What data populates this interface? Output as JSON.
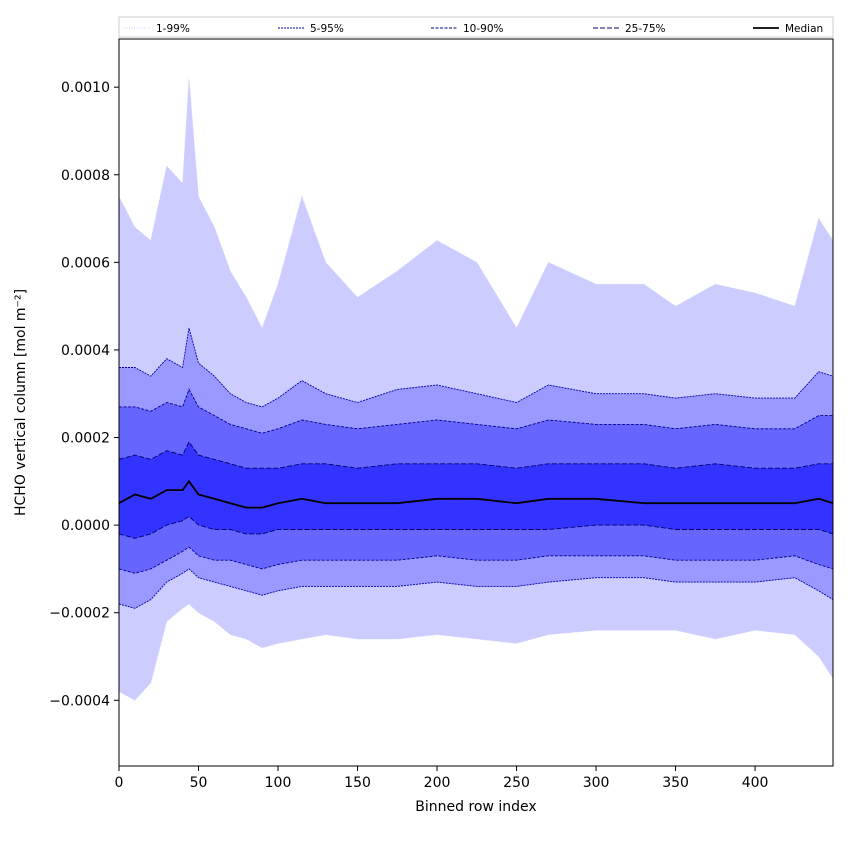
{
  "chart_data": {
    "type": "area",
    "title": "",
    "xlabel": "Binned row index",
    "ylabel": "HCHO vertical column [mol m⁻²]",
    "xlim": [
      0,
      449
    ],
    "ylim": [
      -0.00055,
      0.00111
    ],
    "xticks": [
      0,
      50,
      100,
      150,
      200,
      250,
      300,
      350,
      400
    ],
    "xtick_labels": [
      "0",
      "50",
      "100",
      "150",
      "200",
      "250",
      "300",
      "350",
      "400"
    ],
    "yticks": [
      -0.0004,
      -0.0002,
      0.0,
      0.0002,
      0.0004,
      0.0006,
      0.0008,
      0.001
    ],
    "ytick_labels": [
      "−0.0004",
      "−0.0002",
      "0.0000",
      "0.0002",
      "0.0004",
      "0.0006",
      "0.0008",
      "0.0010"
    ],
    "grid": false,
    "legend_position": "top, spanning plot width",
    "x": [
      0,
      10,
      20,
      30,
      40,
      44,
      50,
      60,
      70,
      80,
      90,
      100,
      115,
      130,
      150,
      175,
      200,
      225,
      250,
      270,
      300,
      330,
      350,
      375,
      400,
      425,
      440,
      449
    ],
    "bands": [
      {
        "name": "1-99%",
        "fill_color": "#ccccff",
        "line_color": "#ccccff",
        "line_style": "dotted",
        "lower": [
          -0.00038,
          -0.0004,
          -0.00036,
          -0.00022,
          -0.00019,
          -0.00018,
          -0.0002,
          -0.00022,
          -0.00025,
          -0.00026,
          -0.00028,
          -0.00027,
          -0.00026,
          -0.00025,
          -0.00026,
          -0.00026,
          -0.00025,
          -0.00026,
          -0.00027,
          -0.00025,
          -0.00024,
          -0.00024,
          -0.00024,
          -0.00026,
          -0.00024,
          -0.00025,
          -0.0003,
          -0.00035
        ],
        "upper": [
          0.00075,
          0.00068,
          0.00065,
          0.00082,
          0.00078,
          0.00102,
          0.00075,
          0.00068,
          0.00058,
          0.00052,
          0.00045,
          0.00055,
          0.00075,
          0.0006,
          0.00052,
          0.00058,
          0.00065,
          0.0006,
          0.00045,
          0.0006,
          0.00055,
          0.00055,
          0.0005,
          0.00055,
          0.00053,
          0.0005,
          0.0007,
          0.00065
        ]
      },
      {
        "name": "5-95%",
        "fill_color": "#9999ff",
        "line_color": "#0000aa",
        "line_style": "dashed-fine",
        "lower": [
          -0.00018,
          -0.00019,
          -0.00017,
          -0.00013,
          -0.00011,
          -0.0001,
          -0.00012,
          -0.00013,
          -0.00014,
          -0.00015,
          -0.00016,
          -0.00015,
          -0.00014,
          -0.00014,
          -0.00014,
          -0.00014,
          -0.00013,
          -0.00014,
          -0.00014,
          -0.00013,
          -0.00012,
          -0.00012,
          -0.00013,
          -0.00013,
          -0.00013,
          -0.00012,
          -0.00015,
          -0.00017
        ],
        "upper": [
          0.00036,
          0.00036,
          0.00034,
          0.00038,
          0.00036,
          0.00045,
          0.00037,
          0.00034,
          0.0003,
          0.00028,
          0.00027,
          0.00029,
          0.00033,
          0.0003,
          0.00028,
          0.00031,
          0.00032,
          0.0003,
          0.00028,
          0.00032,
          0.0003,
          0.0003,
          0.00029,
          0.0003,
          0.00029,
          0.00029,
          0.00035,
          0.00034
        ]
      },
      {
        "name": "10-90%",
        "fill_color": "#6666ff",
        "line_color": "#000088",
        "line_style": "dashed-medium",
        "lower": [
          -0.0001,
          -0.00011,
          -0.0001,
          -8e-05,
          -6e-05,
          -5e-05,
          -7e-05,
          -8e-05,
          -8e-05,
          -9e-05,
          -0.0001,
          -9e-05,
          -8e-05,
          -8e-05,
          -8e-05,
          -8e-05,
          -7e-05,
          -8e-05,
          -8e-05,
          -7e-05,
          -7e-05,
          -7e-05,
          -8e-05,
          -8e-05,
          -8e-05,
          -7e-05,
          -9e-05,
          -0.0001
        ],
        "upper": [
          0.00027,
          0.00027,
          0.00026,
          0.00028,
          0.00027,
          0.00031,
          0.00027,
          0.00025,
          0.00023,
          0.00022,
          0.00021,
          0.00022,
          0.00024,
          0.00023,
          0.00022,
          0.00023,
          0.00024,
          0.00023,
          0.00022,
          0.00024,
          0.00023,
          0.00023,
          0.00022,
          0.00023,
          0.00022,
          0.00022,
          0.00025,
          0.00025
        ]
      },
      {
        "name": "25-75%",
        "fill_color": "#3333ff",
        "line_color": "#000066",
        "line_style": "dashed-long",
        "lower": [
          -2e-05,
          -3e-05,
          -2e-05,
          0.0,
          1e-05,
          2e-05,
          0.0,
          -1e-05,
          -1e-05,
          -2e-05,
          -2e-05,
          -1e-05,
          -1e-05,
          -1e-05,
          -1e-05,
          -1e-05,
          -1e-05,
          -1e-05,
          -1e-05,
          -1e-05,
          0.0,
          0.0,
          -1e-05,
          -1e-05,
          -1e-05,
          -1e-05,
          -1e-05,
          -2e-05
        ],
        "upper": [
          0.00015,
          0.00016,
          0.00015,
          0.00017,
          0.00016,
          0.00019,
          0.00016,
          0.00015,
          0.00014,
          0.00013,
          0.00013,
          0.00013,
          0.00014,
          0.00014,
          0.00013,
          0.00014,
          0.00014,
          0.00014,
          0.00013,
          0.00014,
          0.00014,
          0.00014,
          0.00013,
          0.00014,
          0.00013,
          0.00013,
          0.00014,
          0.00014
        ]
      }
    ],
    "median": {
      "name": "Median",
      "color": "#000000",
      "values": [
        5e-05,
        7e-05,
        6e-05,
        8e-05,
        8e-05,
        0.0001,
        7e-05,
        6e-05,
        5e-05,
        4e-05,
        4e-05,
        5e-05,
        6e-05,
        5e-05,
        5e-05,
        5e-05,
        6e-05,
        6e-05,
        5e-05,
        6e-05,
        6e-05,
        5e-05,
        5e-05,
        5e-05,
        5e-05,
        5e-05,
        6e-05,
        5e-05
      ]
    }
  }
}
